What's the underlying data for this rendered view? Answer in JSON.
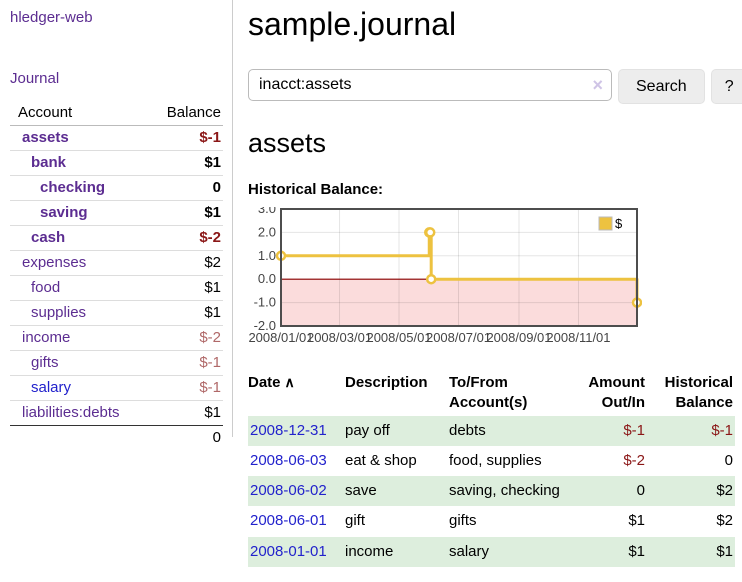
{
  "app": {
    "title": "hledger-web"
  },
  "sidebar": {
    "journal_link": "Journal",
    "accounts": {
      "header_account": "Account",
      "header_balance": "Balance",
      "rows": [
        {
          "name": "assets",
          "depth": 0,
          "bold": true,
          "balance": "$-1",
          "balance_class": "neg"
        },
        {
          "name": "bank",
          "depth": 1,
          "bold": true,
          "balance": "$1",
          "balance_class": "pos"
        },
        {
          "name": "checking",
          "depth": 2,
          "bold": true,
          "balance": "0",
          "balance_class": "pos"
        },
        {
          "name": "saving",
          "depth": 2,
          "bold": true,
          "balance": "$1",
          "balance_class": "pos"
        },
        {
          "name": "cash",
          "depth": 1,
          "bold": true,
          "balance": "$-2",
          "balance_class": "neg"
        },
        {
          "name": "expenses",
          "depth": 0,
          "bold": false,
          "balance": "$2",
          "balance_class": "pos"
        },
        {
          "name": "food",
          "depth": 1,
          "bold": false,
          "balance": "$1",
          "balance_class": "pos"
        },
        {
          "name": "supplies",
          "depth": 1,
          "bold": false,
          "balance": "$1",
          "balance_class": "pos"
        },
        {
          "name": "income",
          "depth": 0,
          "bold": false,
          "balance": "$-2",
          "balance_class": "neg-muted"
        },
        {
          "name": "gifts",
          "depth": 1,
          "bold": false,
          "balance": "$-1",
          "balance_class": "neg-muted"
        },
        {
          "name": "salary",
          "depth": 1,
          "bold": false,
          "balance": "$-1",
          "balance_class": "neg-muted",
          "link_blue": true
        },
        {
          "name": "liabilities:debts",
          "depth": 0,
          "bold": false,
          "balance": "$1",
          "balance_class": "pos",
          "dark_sep": true
        }
      ],
      "total": "0"
    }
  },
  "main": {
    "title": "sample.journal",
    "search": {
      "value": "inacct:assets",
      "button_label": "Search",
      "help_label": "?"
    },
    "account_heading": "assets",
    "chart_label": "Historical Balance:"
  },
  "icons": {
    "sort_ascending": "∧",
    "clear": "×"
  },
  "chart_data": {
    "type": "line",
    "style": "step",
    "title": "Historical Balance",
    "legend": [
      {
        "name": "$",
        "color": "#edc240"
      }
    ],
    "legend_position": "top-right",
    "grid": true,
    "x_start_day": 0,
    "x_end_day": 365,
    "points": [
      {
        "date": "2008-01-01",
        "day": 0,
        "value": 1
      },
      {
        "date": "2008-06-01",
        "day": 152,
        "value": 2
      },
      {
        "date": "2008-06-02",
        "day": 153,
        "value": 2
      },
      {
        "date": "2008-06-03",
        "day": 154,
        "value": 0
      },
      {
        "date": "2008-12-31",
        "day": 365,
        "value": -1
      }
    ],
    "y_ticks": [
      {
        "label": "3.0",
        "value": 3
      },
      {
        "label": "2.0",
        "value": 2
      },
      {
        "label": "1.0",
        "value": 1
      },
      {
        "label": "0.0",
        "value": 0
      },
      {
        "label": "-1.0",
        "value": -1
      },
      {
        "label": "-2.0",
        "value": -2
      }
    ],
    "x_ticks": [
      {
        "label": "2008/01/01",
        "day": 0
      },
      {
        "label": "2008/03/01",
        "day": 60
      },
      {
        "label": "2008/05/01",
        "day": 121
      },
      {
        "label": "2008/07/01",
        "day": 182
      },
      {
        "label": "2008/09/01",
        "day": 244
      },
      {
        "label": "2008/11/01",
        "day": 305
      }
    ],
    "ylim": [
      -2,
      3
    ],
    "colors": {
      "line": "#edc240",
      "marker_fill": "#ffffff",
      "negative_region": "#fbdcdc",
      "zero_line": "#8b0000",
      "gridline": "rgba(0,0,0,0.10)",
      "border": "#4d4d4d",
      "tick_label": "#444444"
    }
  },
  "register": {
    "headers": {
      "date": "Date",
      "description": "Description",
      "account_line1": "To/From",
      "account_line2": "Account(s)",
      "amount_line1": "Amount",
      "amount_line2": "Out/In",
      "balance_line1": "Historical",
      "balance_line2": "Balance"
    },
    "rows": [
      {
        "date": "2008-12-31",
        "description": "pay off",
        "accounts": "debts",
        "amount": "$-1",
        "amount_class": "neg",
        "balance": "$-1",
        "balance_class": "neg",
        "stripe": true
      },
      {
        "date": "2008-06-03",
        "description": "eat & shop",
        "accounts": "food, supplies",
        "amount": "$-2",
        "amount_class": "neg",
        "balance": "0",
        "balance_class": "pos",
        "stripe": false
      },
      {
        "date": "2008-06-02",
        "description": "save",
        "accounts": "saving, checking",
        "amount": "0",
        "amount_class": "pos",
        "balance": "$2",
        "balance_class": "pos",
        "stripe": true
      },
      {
        "date": "2008-06-01",
        "description": "gift",
        "accounts": "gifts",
        "amount": "$1",
        "amount_class": "pos",
        "balance": "$2",
        "balance_class": "pos",
        "stripe": false
      },
      {
        "date": "2008-01-01",
        "description": "income",
        "accounts": "salary",
        "amount": "$1",
        "amount_class": "pos",
        "balance": "$1",
        "balance_class": "pos",
        "stripe": true
      }
    ]
  }
}
